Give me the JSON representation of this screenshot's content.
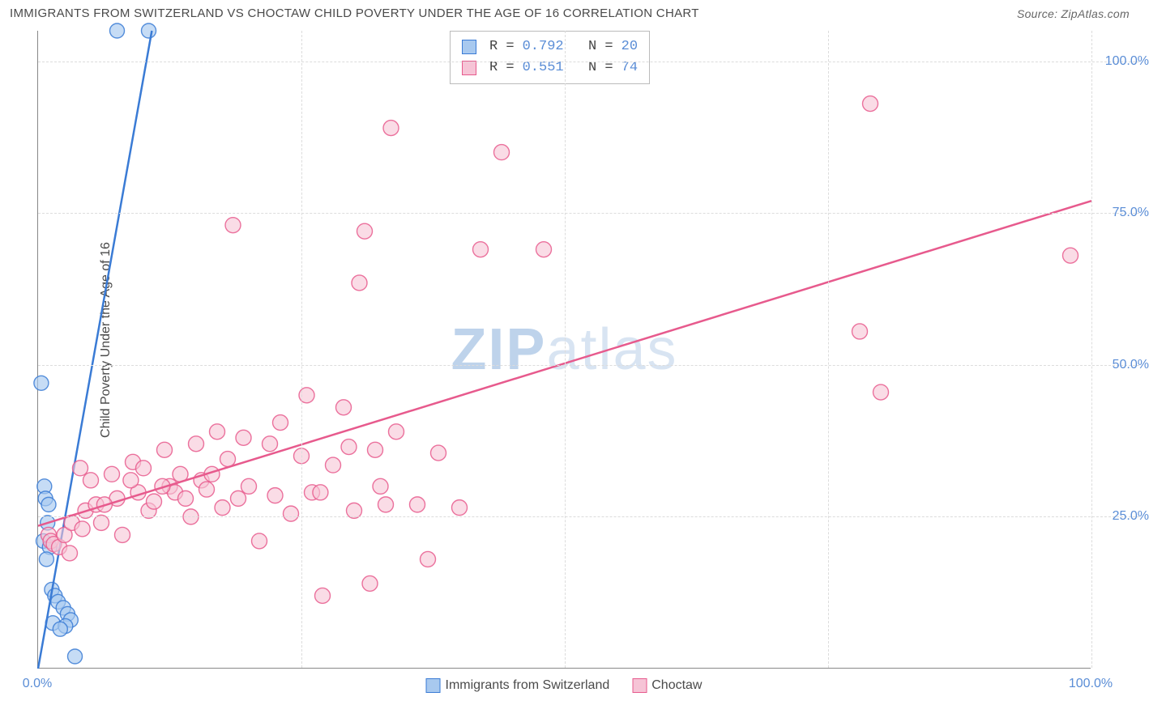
{
  "title": "IMMIGRANTS FROM SWITZERLAND VS CHOCTAW CHILD POVERTY UNDER THE AGE OF 16 CORRELATION CHART",
  "source_label": "Source: ZipAtlas.com",
  "ylabel": "Child Poverty Under the Age of 16",
  "watermark_a": "ZIP",
  "watermark_b": "atlas",
  "chart": {
    "type": "scatter",
    "xlim": [
      0,
      100
    ],
    "ylim": [
      0,
      105
    ],
    "xtick_labels": [
      "0.0%",
      "100.0%"
    ],
    "xtick_pos": [
      0,
      100
    ],
    "ytick_labels": [
      "25.0%",
      "50.0%",
      "75.0%",
      "100.0%"
    ],
    "ytick_pos": [
      25,
      50,
      75,
      100
    ],
    "xgrid_pos": [
      25,
      50,
      75,
      100
    ],
    "grid_color": "#dcdcdc",
    "axis_color": "#888888",
    "background_color": "#ffffff",
    "series": [
      {
        "name": "Immigrants from Switzerland",
        "stroke": "#3a7bd5",
        "fill": "#a8c9ef",
        "opacity": 0.65,
        "marker_r": 9,
        "R": "0.792",
        "N": "20",
        "trend": {
          "x1": 0,
          "y1": 0,
          "x2": 10.8,
          "y2": 105
        },
        "points": [
          [
            0.3,
            47
          ],
          [
            0.6,
            30
          ],
          [
            0.7,
            28
          ],
          [
            0.9,
            24
          ],
          [
            0.5,
            21
          ],
          [
            1.1,
            20
          ],
          [
            0.8,
            18
          ],
          [
            1.3,
            13
          ],
          [
            1.6,
            12
          ],
          [
            1.9,
            11
          ],
          [
            2.4,
            10
          ],
          [
            2.8,
            9
          ],
          [
            3.1,
            8
          ],
          [
            1.4,
            7.5
          ],
          [
            2.6,
            7
          ],
          [
            2.1,
            6.5
          ],
          [
            3.5,
            2
          ],
          [
            7.5,
            105
          ],
          [
            10.5,
            105
          ],
          [
            1.0,
            27
          ]
        ]
      },
      {
        "name": "Choctaw",
        "stroke": "#e75a8d",
        "fill": "#f6c4d6",
        "opacity": 0.6,
        "marker_r": 9.5,
        "R": "0.551",
        "N": "74",
        "trend": {
          "x1": 0,
          "y1": 23.5,
          "x2": 100,
          "y2": 77
        },
        "points": [
          [
            1,
            22
          ],
          [
            1.2,
            21
          ],
          [
            1.5,
            20.5
          ],
          [
            2,
            20
          ],
          [
            2.5,
            22
          ],
          [
            3,
            19
          ],
          [
            3.2,
            24
          ],
          [
            4,
            33
          ],
          [
            4.5,
            26
          ],
          [
            5,
            31
          ],
          [
            5.5,
            27
          ],
          [
            6,
            24
          ],
          [
            7,
            32
          ],
          [
            7.5,
            28
          ],
          [
            8,
            22
          ],
          [
            9,
            34
          ],
          [
            9.5,
            29
          ],
          [
            10,
            33
          ],
          [
            10.5,
            26
          ],
          [
            11,
            27.5
          ],
          [
            12,
            36
          ],
          [
            12.5,
            30
          ],
          [
            13,
            29
          ],
          [
            13.5,
            32
          ],
          [
            14,
            28
          ],
          [
            15,
            37
          ],
          [
            15.5,
            31
          ],
          [
            16,
            29.5
          ],
          [
            17,
            39
          ],
          [
            17.5,
            26.5
          ],
          [
            18,
            34.5
          ],
          [
            18.5,
            73
          ],
          [
            19,
            28
          ],
          [
            20,
            30
          ],
          [
            21,
            21
          ],
          [
            22,
            37
          ],
          [
            23,
            40.5
          ],
          [
            24,
            25.5
          ],
          [
            25,
            35
          ],
          [
            25.5,
            45
          ],
          [
            26,
            29
          ],
          [
            27,
            12
          ],
          [
            28,
            33.5
          ],
          [
            29,
            43
          ],
          [
            30,
            26
          ],
          [
            30.5,
            63.5
          ],
          [
            31,
            72
          ],
          [
            31.5,
            14
          ],
          [
            32,
            36
          ],
          [
            33,
            27
          ],
          [
            33.5,
            89
          ],
          [
            34,
            39
          ],
          [
            36,
            27
          ],
          [
            37,
            18
          ],
          [
            38,
            35.5
          ],
          [
            40,
            26.5
          ],
          [
            42,
            69
          ],
          [
            44,
            85
          ],
          [
            48,
            69
          ],
          [
            78,
            55.5
          ],
          [
            79,
            93
          ],
          [
            80,
            45.5
          ],
          [
            98,
            68
          ],
          [
            4.2,
            23
          ],
          [
            6.3,
            27
          ],
          [
            8.8,
            31
          ],
          [
            11.8,
            30
          ],
          [
            14.5,
            25
          ],
          [
            16.5,
            32
          ],
          [
            19.5,
            38
          ],
          [
            22.5,
            28.5
          ],
          [
            26.8,
            29
          ],
          [
            29.5,
            36.5
          ],
          [
            32.5,
            30
          ]
        ]
      }
    ],
    "x_legend": [
      {
        "label": "Immigrants from Switzerland",
        "fill": "#a8c9ef",
        "stroke": "#3a7bd5"
      },
      {
        "label": "Choctaw",
        "fill": "#f6c4d6",
        "stroke": "#e75a8d"
      }
    ]
  }
}
